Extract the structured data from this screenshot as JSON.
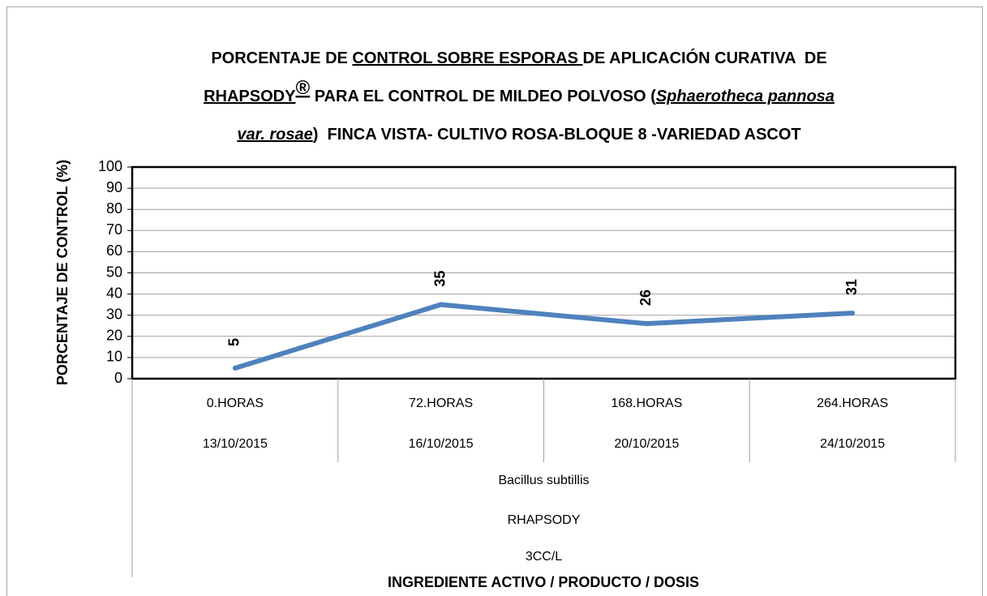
{
  "chart_data": {
    "type": "line",
    "title": [
      [
        "PORCENTAJE DE ",
        "CONTROL SOBRE ESPORAS ",
        "DE APLICACIÓN CURATIVA  DE"
      ],
      [
        "RHAPSODY",
        "®",
        " PARA EL CONTROL DE MILDEO POLVOSO (",
        "Sphaerotheca pannosa"
      ],
      [
        "var. rosae",
        ")  FINCA VISTA- CULTIVO ROSA-BLOQUE 8 -VARIEDAD ASCOT"
      ]
    ],
    "y_label": "PORCENTAJE DE CONTROL (%)",
    "x_label": "INGREDIENTE ACTIVO / PRODUCTO / DOSIS",
    "categories": [
      "0.HORAS",
      "72.HORAS",
      "168.HORAS",
      "264.HORAS"
    ],
    "category_dates": [
      "13/10/2015",
      "16/10/2015",
      "20/10/2015",
      "24/10/2015"
    ],
    "category_groups": [
      "Bacillus subtillis",
      "RHAPSODY",
      "3CC/L"
    ],
    "values": [
      5,
      35,
      26,
      31
    ],
    "color": "#4f81bd",
    "ylim": [
      0,
      100
    ],
    "yticks": [
      0,
      10,
      20,
      30,
      40,
      50,
      60,
      70,
      80,
      90,
      100
    ],
    "grid": true
  }
}
